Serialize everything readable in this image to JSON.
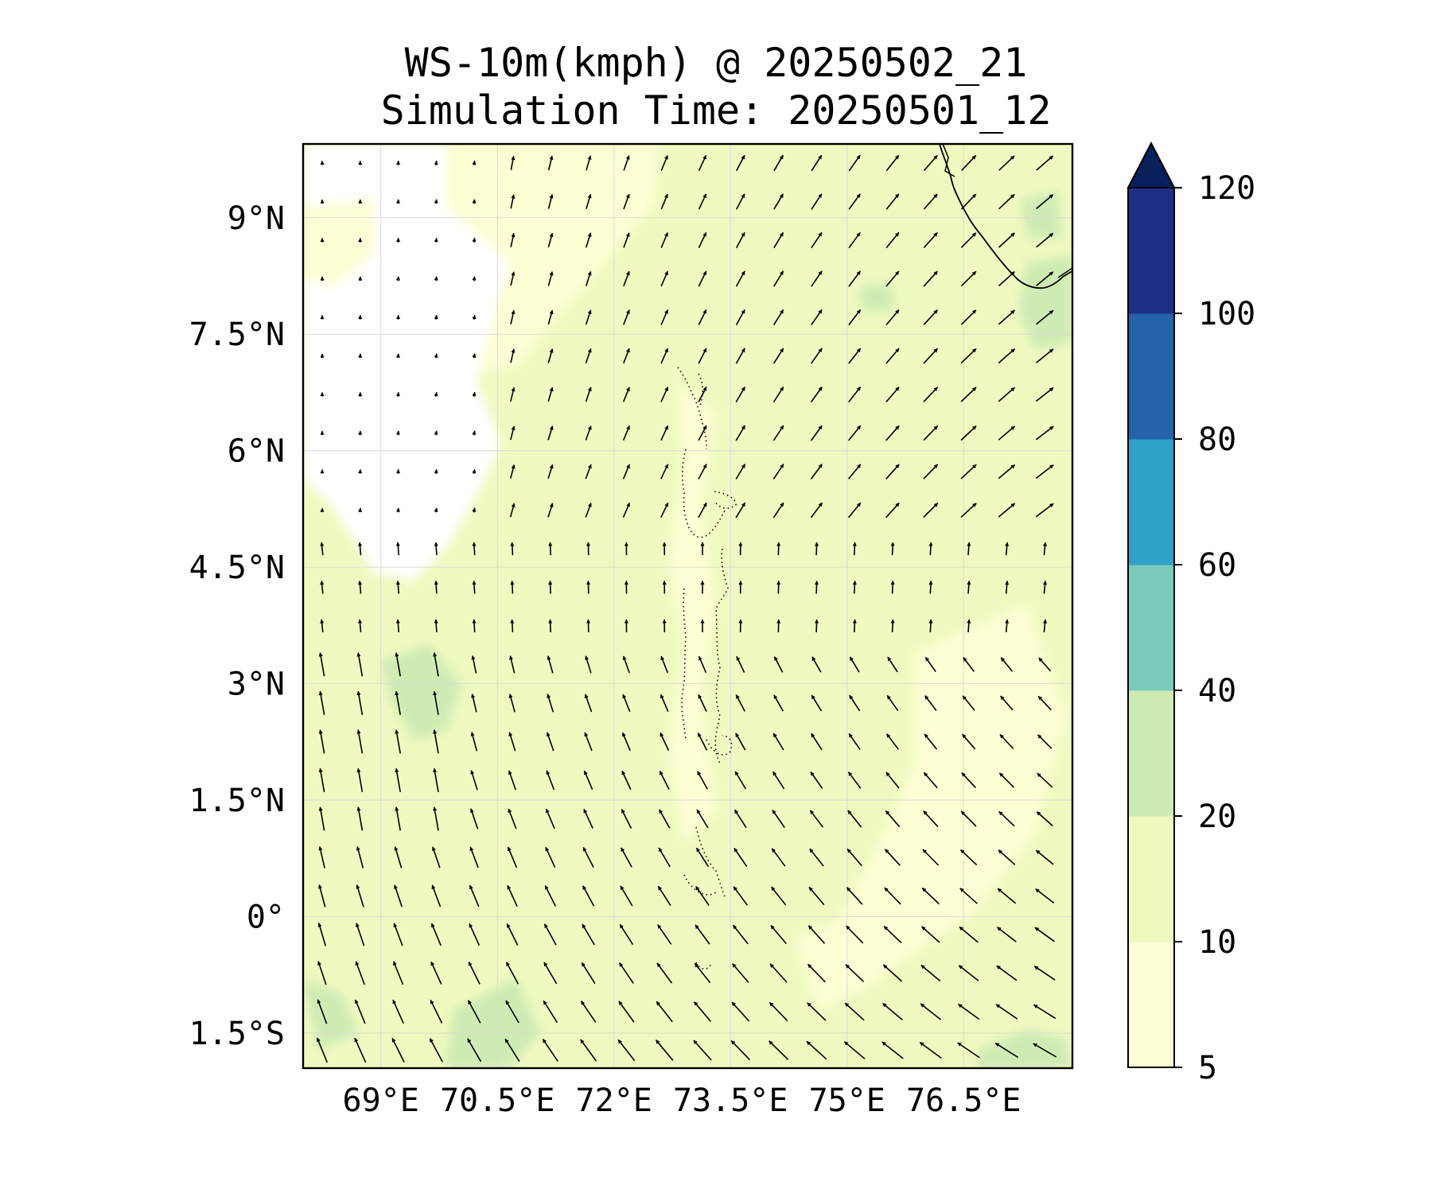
{
  "title": {
    "line1": "WS-10m(kmph) @ 20250502_21",
    "line2": "Simulation Time: 20250501_12"
  },
  "map": {
    "extent": {
      "lon_min": 68.0,
      "lon_max": 77.9,
      "lat_min": -1.95,
      "lat_max": 9.95
    },
    "lon_ticks": [
      69,
      70.5,
      72,
      73.5,
      75,
      76.5
    ],
    "lon_tick_labels": [
      "69°E",
      "70.5°E",
      "72°E",
      "73.5°E",
      "75°E",
      "76.5°E"
    ],
    "lat_ticks": [
      9,
      7.5,
      6,
      4.5,
      3,
      1.5,
      0,
      -1.5
    ],
    "lat_tick_labels": [
      "9°N",
      "7.5°N",
      "6°N",
      "4.5°N",
      "3°N",
      "1.5°N",
      "0°",
      "1.5°S"
    ],
    "gridlines": true,
    "background_fill": "#effac0",
    "wind_vectors": "quiver arrows, predominantly northward/north-eastward in the north and north-westward in the south"
  },
  "colorbar": {
    "levels": [
      5,
      10,
      20,
      40,
      60,
      80,
      100,
      120
    ],
    "tick_labels": [
      "5",
      "10",
      "20",
      "40",
      "60",
      "80",
      "100",
      "120"
    ],
    "colors": [
      "#fdfed4",
      "#eef9be",
      "#cfebb4",
      "#7acabb",
      "#2ea2c8",
      "#2363ab",
      "#202f86"
    ],
    "extend_color": "#0a1f5c",
    "extend": "max"
  },
  "colors": {
    "calm_white": "#ffffff",
    "light": "#fdfed4",
    "base": "#effac0",
    "green": "#cfebb4",
    "coast": "#000000"
  }
}
